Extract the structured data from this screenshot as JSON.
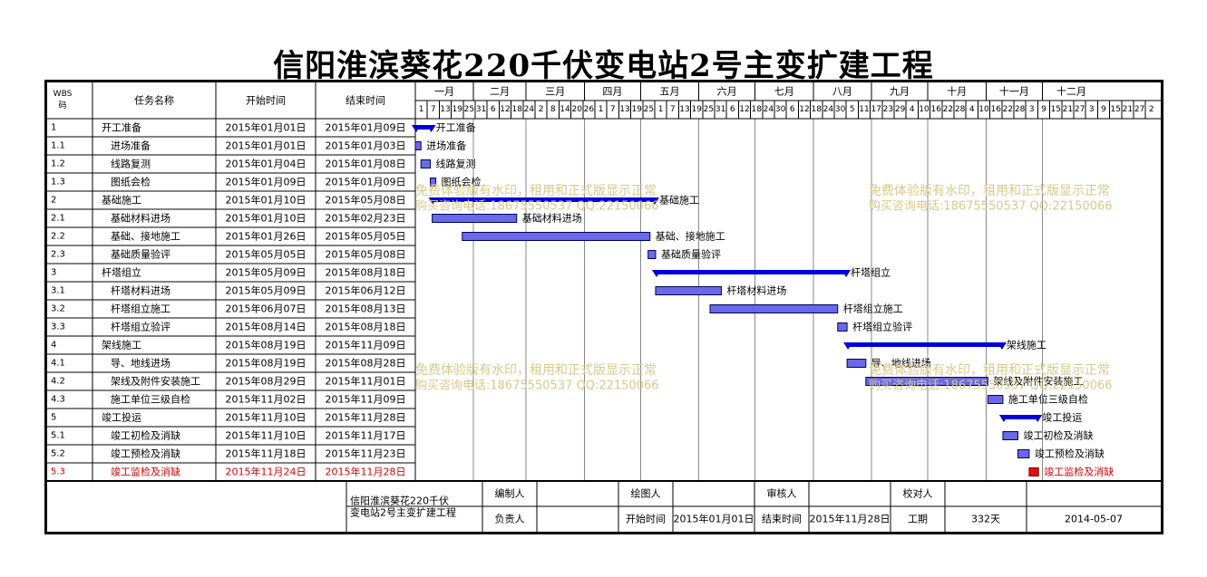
{
  "title": "信阳淮滨葵花220千伏变电站2号主变扩建工程",
  "columns": {
    "wbs": "WBS码",
    "name": "任务名称",
    "start": "开始时间",
    "end": "结束时间"
  },
  "months": [
    "一月",
    "二月",
    "三月",
    "四月",
    "五月",
    "六月",
    "七月",
    "八月",
    "九月",
    "十月",
    "十一月",
    "十二月"
  ],
  "day_ticks": [
    "1",
    "7",
    "13",
    "19",
    "25",
    "31",
    "6",
    "12",
    "18",
    "24",
    "2",
    "8",
    "14",
    "20",
    "26",
    "1",
    "7",
    "13",
    "19",
    "25",
    "1",
    "7",
    "13",
    "19",
    "25",
    "31",
    "6",
    "12",
    "18",
    "24",
    "30",
    "6",
    "12",
    "18",
    "24",
    "30",
    "5",
    "11",
    "17",
    "23",
    "29",
    "4",
    "10",
    "16",
    "22",
    "28",
    "4",
    "10",
    "16",
    "22",
    "28",
    "3",
    "9",
    "15",
    "21",
    "27",
    "3",
    "9",
    "15",
    "21",
    "27",
    "2"
  ],
  "tasks": [
    {
      "wbs": "1",
      "name": "开工准备",
      "start": "2015年01月01日",
      "end": "2015年01月09日",
      "level": 0,
      "summary": true,
      "critical": false
    },
    {
      "wbs": "1.1",
      "name": "进场准备",
      "start": "2015年01月01日",
      "end": "2015年01月03日",
      "level": 1,
      "summary": false,
      "critical": false
    },
    {
      "wbs": "1.2",
      "name": "线路复测",
      "start": "2015年01月04日",
      "end": "2015年01月08日",
      "level": 1,
      "summary": false,
      "critical": false
    },
    {
      "wbs": "1.3",
      "name": "图纸会检",
      "start": "2015年01月09日",
      "end": "2015年01月09日",
      "level": 1,
      "summary": false,
      "critical": false
    },
    {
      "wbs": "2",
      "name": "基础施工",
      "start": "2015年01月10日",
      "end": "2015年05月08日",
      "level": 0,
      "summary": true,
      "critical": false
    },
    {
      "wbs": "2.1",
      "name": "基础材料进场",
      "start": "2015年01月10日",
      "end": "2015年02月23日",
      "level": 1,
      "summary": false,
      "critical": false
    },
    {
      "wbs": "2.2",
      "name": "基础、接地施工",
      "start": "2015年01月26日",
      "end": "2015年05月05日",
      "level": 1,
      "summary": false,
      "critical": false
    },
    {
      "wbs": "2.3",
      "name": "基础质量验评",
      "start": "2015年05月05日",
      "end": "2015年05月08日",
      "level": 1,
      "summary": false,
      "critical": false
    },
    {
      "wbs": "3",
      "name": "杆塔组立",
      "start": "2015年05月09日",
      "end": "2015年08月18日",
      "level": 0,
      "summary": true,
      "critical": false
    },
    {
      "wbs": "3.1",
      "name": "杆塔材料进场",
      "start": "2015年05月09日",
      "end": "2015年06月12日",
      "level": 1,
      "summary": false,
      "critical": false
    },
    {
      "wbs": "3.2",
      "name": "杆塔组立施工",
      "start": "2015年06月07日",
      "end": "2015年08月13日",
      "level": 1,
      "summary": false,
      "critical": false
    },
    {
      "wbs": "3.3",
      "name": "杆塔组立验评",
      "start": "2015年08月14日",
      "end": "2015年08月18日",
      "level": 1,
      "summary": false,
      "critical": false
    },
    {
      "wbs": "4",
      "name": "架线施工",
      "start": "2015年08月19日",
      "end": "2015年11月09日",
      "level": 0,
      "summary": true,
      "critical": false
    },
    {
      "wbs": "4.1",
      "name": "导、地线进场",
      "start": "2015年08月19日",
      "end": "2015年08月28日",
      "level": 1,
      "summary": false,
      "critical": false
    },
    {
      "wbs": "4.2",
      "name": "架线及附件安装施工",
      "start": "2015年08月29日",
      "end": "2015年11月01日",
      "level": 1,
      "summary": false,
      "critical": false
    },
    {
      "wbs": "4.3",
      "name": "施工单位三级自检",
      "start": "2015年11月02日",
      "end": "2015年11月09日",
      "level": 1,
      "summary": false,
      "critical": false
    },
    {
      "wbs": "5",
      "name": "竣工投运",
      "start": "2015年11月10日",
      "end": "2015年11月28日",
      "level": 0,
      "summary": true,
      "critical": false
    },
    {
      "wbs": "5.1",
      "name": "竣工初检及消缺",
      "start": "2015年11月10日",
      "end": "2015年11月17日",
      "level": 1,
      "summary": false,
      "critical": false
    },
    {
      "wbs": "5.2",
      "name": "竣工预检及消缺",
      "start": "2015年11月18日",
      "end": "2015年11月23日",
      "level": 1,
      "summary": false,
      "critical": false
    },
    {
      "wbs": "5.3",
      "name": "竣工监检及消缺",
      "start": "2015年11月24日",
      "end": "2015年11月28日",
      "level": 1,
      "summary": false,
      "critical": true
    }
  ],
  "footer": {
    "project": "信阳淮滨葵花220千伏变电站2号主变扩建工程",
    "labels": {
      "bianzhi": "编制人",
      "huitu": "绘图人",
      "shenhe": "审核人",
      "jiaodui": "校对人",
      "fuze": "负责人",
      "start": "开始时间",
      "end": "结束时间",
      "duration": "工期"
    },
    "start_value": "2015年01月01日",
    "end_value": "2015年11月28日",
    "duration_value": "332天",
    "date": "2014-05-07"
  },
  "watermarks": [
    {
      "line1": "免费体验版有水印，租用和正式版显示正常",
      "line2": "购买咨询电话:18675550537 QQ:22150066"
    },
    {
      "line1": "免费体验版有水印，租用和正式版显示正常",
      "line2": "购买咨询电话:18675550537 QQ:22150066"
    },
    {
      "line1": "免费体验版有水印，租用和正式版显示正常",
      "line2": "购买咨询电话:18675550537 QQ:22150066"
    },
    {
      "line1": "免费体验版有水印，租用和正式版显示正常",
      "line2": "购买咨询电话:18675550537 QQ:22150066"
    }
  ],
  "colors": {
    "bar": "#0000dd",
    "bar_fill": "#6a6ae6",
    "critical": "#dd1111",
    "critical_text": "#dd0000",
    "watermark": "#d9c98a",
    "grid": "#000000"
  }
}
